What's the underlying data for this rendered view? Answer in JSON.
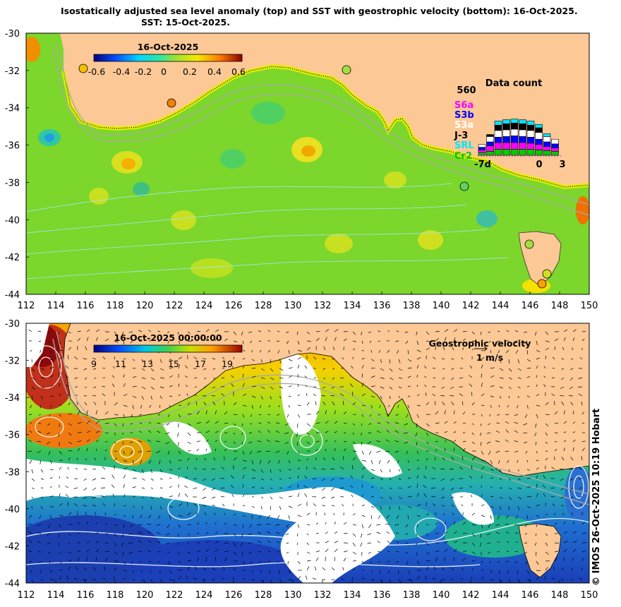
{
  "title": {
    "line1": "Isostatically adjusted sea level anomaly (top) and SST with geostrophic velocity (bottom): 16-Oct-2025.",
    "line2": "SST: 15-Oct-2025."
  },
  "axes": {
    "x_ticks": [
      "112",
      "114",
      "116",
      "118",
      "120",
      "122",
      "124",
      "126",
      "128",
      "130",
      "132",
      "134",
      "136",
      "138",
      "140",
      "142",
      "144",
      "146",
      "148",
      "150"
    ],
    "y_ticks": [
      "-30",
      "-32",
      "-34",
      "-36",
      "-38",
      "-40",
      "-42",
      "-44"
    ]
  },
  "top_panel": {
    "colorbar_title": "16-Oct-2025",
    "colorbar_ticks": [
      "-0.6",
      "-0.4",
      "-0.2",
      "0",
      "0.2",
      "0.4",
      "0.6"
    ],
    "data_count": {
      "title": "Data count",
      "max_label": "560",
      "missions": [
        {
          "label": "S6a",
          "color": "#ff00ff"
        },
        {
          "label": "S3b",
          "color": "#0000ff"
        },
        {
          "label": "S3a",
          "color": "#ffffff"
        },
        {
          "label": "J-3",
          "color": "#000000"
        },
        {
          "label": "SRL",
          "color": "#00e5ff"
        },
        {
          "label": "Cr2",
          "color": "#00cc00"
        }
      ],
      "x_labels": [
        "-7d",
        "0",
        "3"
      ]
    }
  },
  "bottom_panel": {
    "colorbar_title": "16-Oct-2025 00:00:00",
    "colorbar_ticks": [
      "9",
      "11",
      "13",
      "15",
      "17",
      "19"
    ],
    "velocity_legend_title": "Geostrophic velocity",
    "velocity_legend_scale": "1 m/s"
  },
  "colors": {
    "land": "#fcc896",
    "ssla_base": "#7cd62c",
    "sst_cold": "#1f4fd0"
  },
  "credit": "© IMOS 26-Oct-2025 10:19 Hobart"
}
